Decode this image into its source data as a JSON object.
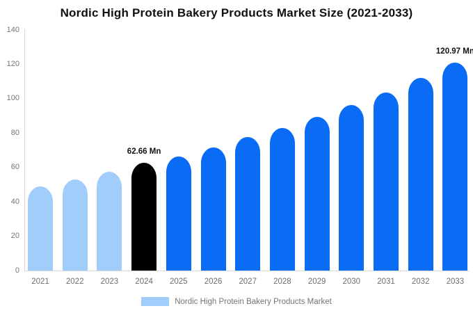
{
  "title": "Nordic High Protein Bakery Products Market Size (2021-2033)",
  "chart_data": {
    "type": "bar",
    "title": "Nordic High Protein Bakery Products Market Size (2021-2033)",
    "xlabel": "",
    "ylabel": "",
    "categories": [
      "2021",
      "2022",
      "2023",
      "2024",
      "2025",
      "2026",
      "2027",
      "2028",
      "2029",
      "2030",
      "2031",
      "2032",
      "2033"
    ],
    "values": [
      49,
      53,
      57.5,
      62.66,
      66.5,
      71.5,
      77.5,
      83,
      89.5,
      96.5,
      103.5,
      112,
      120.97
    ],
    "unit": "Mn",
    "bar_colors": [
      "#A0CDFA",
      "#A0CDFA",
      "#A0CDFA",
      "#000000",
      "#0A6CF5",
      "#0A6CF5",
      "#0A6CF5",
      "#0A6CF5",
      "#0A6CF5",
      "#0A6CF5",
      "#0A6CF5",
      "#0A6CF5",
      "#0A6CF5"
    ],
    "annotations": [
      {
        "category": "2024",
        "text": "62.66 Mn"
      },
      {
        "category": "2033",
        "text": "120.97 Mn"
      }
    ],
    "yticks": [
      0,
      20,
      40,
      60,
      80,
      100,
      120,
      140
    ],
    "ylim": [
      0,
      140
    ],
    "grid": false,
    "legend_position": "bottom-center",
    "legend": {
      "label": "Nordic High Protein Bakery Products Market",
      "swatch_color": "#A0CDFA"
    },
    "colors": {
      "historical_bar": "#A0CDFA",
      "base_year_bar": "#000000",
      "forecast_bar": "#0A6CF5",
      "axis_line": "#D9D9D9",
      "tick_text": "#757575",
      "title_text": "#111111"
    }
  }
}
